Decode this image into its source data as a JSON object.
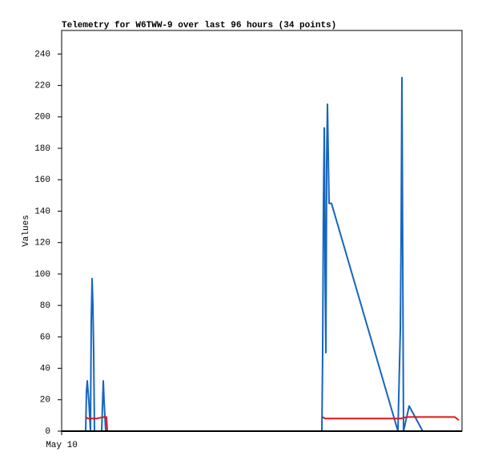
{
  "chart_data": {
    "type": "line",
    "title": "Telemetry for W6TWW-9 over last 96 hours (34 points)",
    "y_label": "Values",
    "xlim": [
      0,
      96
    ],
    "xticks": [
      {
        "value": 0,
        "label": "May 10"
      }
    ],
    "ylim": [
      0,
      255
    ],
    "yticks": [
      0,
      20,
      40,
      60,
      80,
      100,
      120,
      140,
      160,
      180,
      200,
      220,
      240
    ],
    "series": [
      {
        "color": "#1565c0",
        "x": [
          5.76,
          5.95,
          6.14,
          6.53,
          6.91,
          7.1,
          7.3,
          7.49,
          7.68,
          7.87,
          9.6,
          9.98,
          10.18,
          10.56,
          62.4,
          62.59,
          62.78,
          62.98,
          63.17,
          63.36,
          63.55,
          63.74,
          63.94,
          64.13,
          64.7,
          80.64,
          81.22,
          81.41,
          81.6,
          81.79,
          81.98,
          83.33,
          86.59
        ],
        "values": [
          0,
          25,
          32,
          19,
          0,
          70,
          97,
          80,
          50,
          0,
          0,
          32,
          19,
          0,
          0,
          50,
          145,
          193,
          101,
          50,
          172,
          208,
          175,
          145,
          145,
          0,
          65,
          127,
          225,
          111,
          0,
          16,
          0
        ]
      },
      {
        "color": "#e0161a",
        "x": [
          5.76,
          6.34,
          8.26,
          10.18,
          10.75,
          10.94,
          36,
          62.59,
          63.17,
          81.22,
          82.75,
          94.27,
          95.23
        ],
        "values": [
          9,
          8,
          8,
          9,
          9,
          0,
          null,
          9,
          8,
          8,
          9,
          9,
          7
        ]
      },
      {
        "color": "#000000",
        "x": [
          0,
          96
        ],
        "values": [
          0,
          0
        ]
      }
    ]
  }
}
